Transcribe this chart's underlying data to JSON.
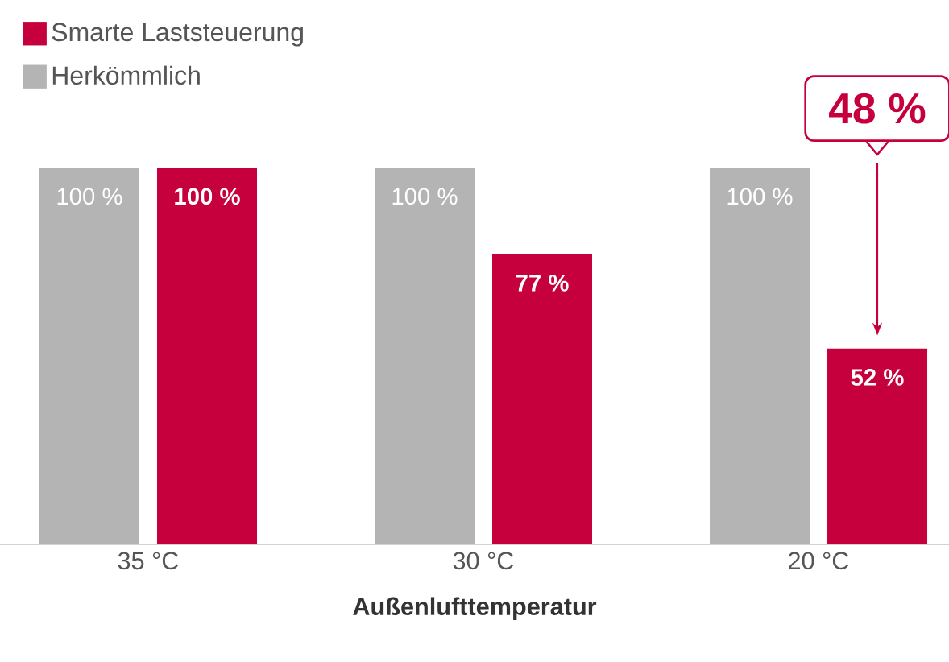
{
  "chart_data": {
    "type": "bar",
    "categories": [
      "35 °C",
      "30 °C",
      "20 °C"
    ],
    "xlabel": "Außenlufttemperatur",
    "legend": "top left",
    "series": [
      {
        "name": "Herkömmlich",
        "color": "#b4b4b4",
        "values": [
          100,
          100,
          100
        ],
        "value_labels": [
          "100 %",
          "100 %",
          "100 %"
        ]
      },
      {
        "name": "Smarte Laststeuerung",
        "color": "#c6003d",
        "values": [
          100,
          77,
          52
        ],
        "value_labels": [
          "100 %",
          "77 %",
          "52 %"
        ]
      }
    ],
    "annotations": [
      "48 %"
    ]
  }
}
